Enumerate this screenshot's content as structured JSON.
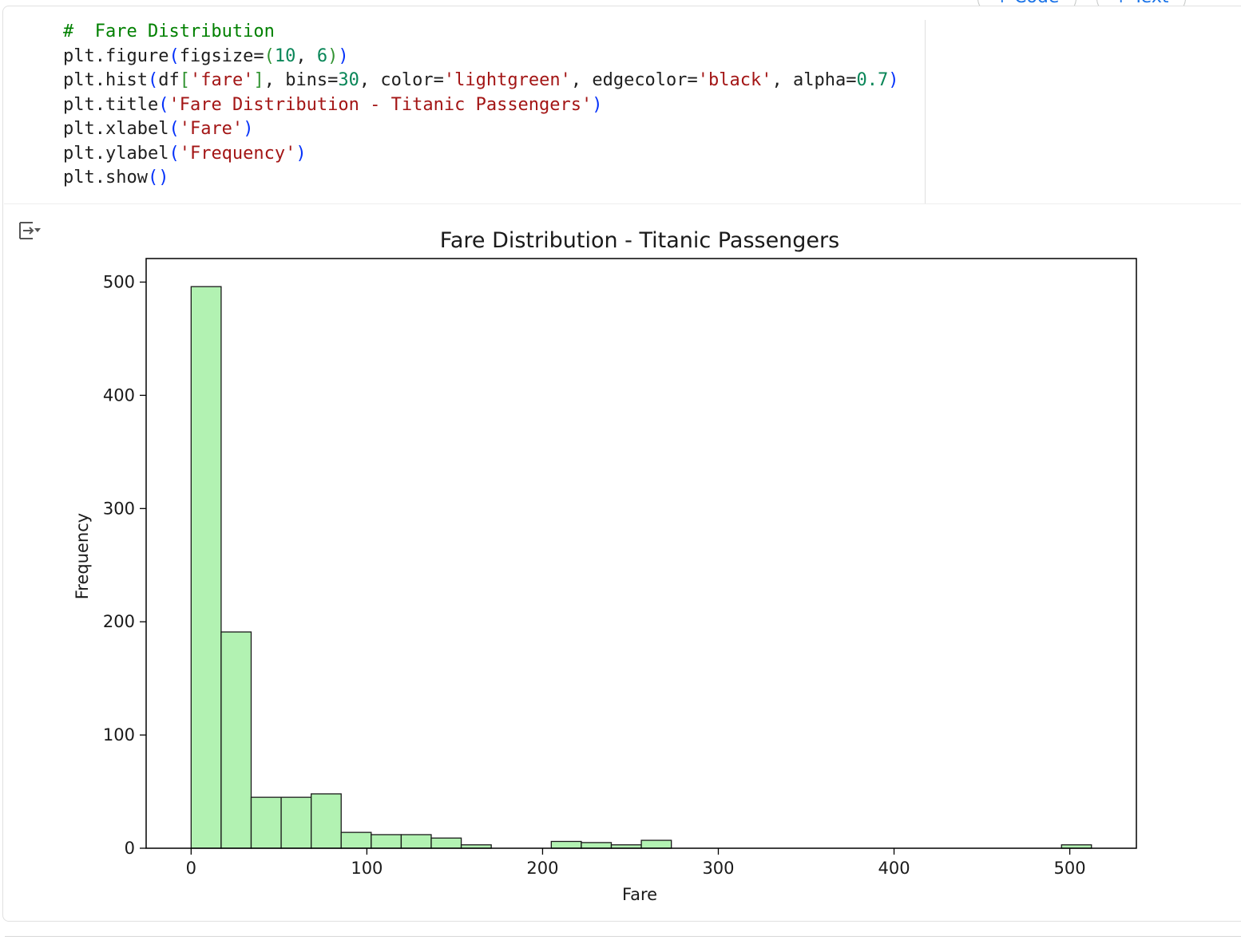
{
  "toolbar": {
    "add_code_label": "Code",
    "add_text_label": "Text",
    "plus": "+"
  },
  "cell": {
    "code_lines": [
      [
        {
          "t": "#  Fare Distribution",
          "c": "cm"
        }
      ],
      [
        {
          "t": "plt.figure"
        },
        {
          "t": "(",
          "c": "p1"
        },
        {
          "t": "figsize="
        },
        {
          "t": "(",
          "c": "p2"
        },
        {
          "t": "10",
          "c": "num"
        },
        {
          "t": ", "
        },
        {
          "t": "6",
          "c": "num"
        },
        {
          "t": ")",
          "c": "p2"
        },
        {
          "t": ")",
          "c": "p1"
        }
      ],
      [
        {
          "t": "plt.hist"
        },
        {
          "t": "(",
          "c": "p1"
        },
        {
          "t": "df"
        },
        {
          "t": "[",
          "c": "p2"
        },
        {
          "t": "'fare'",
          "c": "str"
        },
        {
          "t": "]",
          "c": "p2"
        },
        {
          "t": ", bins="
        },
        {
          "t": "30",
          "c": "num"
        },
        {
          "t": ", color="
        },
        {
          "t": "'lightgreen'",
          "c": "str"
        },
        {
          "t": ", edgecolor="
        },
        {
          "t": "'black'",
          "c": "str"
        },
        {
          "t": ", alpha="
        },
        {
          "t": "0.7",
          "c": "num"
        },
        {
          "t": ")",
          "c": "p1"
        }
      ],
      [
        {
          "t": "plt.title"
        },
        {
          "t": "(",
          "c": "p1"
        },
        {
          "t": "'Fare Distribution - Titanic Passengers'",
          "c": "str"
        },
        {
          "t": ")",
          "c": "p1"
        }
      ],
      [
        {
          "t": "plt.xlabel"
        },
        {
          "t": "(",
          "c": "p1"
        },
        {
          "t": "'Fare'",
          "c": "str"
        },
        {
          "t": ")",
          "c": "p1"
        }
      ],
      [
        {
          "t": "plt.ylabel"
        },
        {
          "t": "(",
          "c": "p1"
        },
        {
          "t": "'Frequency'",
          "c": "str"
        },
        {
          "t": ")",
          "c": "p1"
        }
      ],
      [
        {
          "t": "plt.show"
        },
        {
          "t": "()",
          "c": "p1"
        }
      ]
    ],
    "output_icon": "output-toggle-icon"
  },
  "chart_data": {
    "type": "bar",
    "title": "Fare Distribution - Titanic Passengers",
    "xlabel": "Fare",
    "ylabel": "Frequency",
    "bin_edges": [
      0,
      17.08,
      34.16,
      51.24,
      68.32,
      85.39,
      102.47,
      119.55,
      136.63,
      153.71,
      170.79,
      187.87,
      204.95,
      222.03,
      239.11,
      256.19,
      273.27,
      290.35,
      307.43,
      324.51,
      341.59,
      358.66,
      375.74,
      392.82,
      409.9,
      426.98,
      444.06,
      461.14,
      478.22,
      495.3,
      512.33
    ],
    "counts": [
      496,
      191,
      45,
      45,
      48,
      14,
      12,
      12,
      9,
      3,
      0,
      0,
      6,
      5,
      3,
      7,
      0,
      0,
      0,
      0,
      0,
      0,
      0,
      0,
      0,
      0,
      0,
      0,
      0,
      3
    ],
    "xlim": [
      -25.6,
      537.9
    ],
    "ylim": [
      0,
      520.8
    ],
    "xticks": [
      0,
      100,
      200,
      300,
      400,
      500
    ],
    "yticks": [
      0,
      100,
      200,
      300,
      400,
      500
    ],
    "bar_color": "#b2f2b2",
    "edge_color": "#1a1a1a",
    "grid": false,
    "legend": "none"
  }
}
